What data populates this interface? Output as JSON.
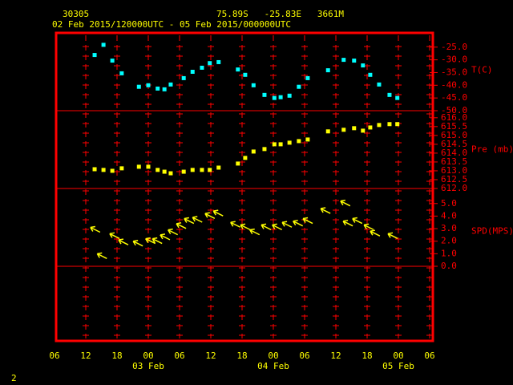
{
  "header": {
    "station": "30305",
    "location": "75.89S   -25.83E   3661M",
    "period": "02 Feb 2015/120000UTC - 05 Feb 2015/000000UTC"
  },
  "footer": "2",
  "x_axis": {
    "xlim": [
      6,
      78
    ],
    "xticks": [
      {
        "value": 6,
        "label": "06"
      },
      {
        "value": 12,
        "label": "12"
      },
      {
        "value": 18,
        "label": "18"
      },
      {
        "value": 24,
        "label": "00"
      },
      {
        "value": 30,
        "label": "06"
      },
      {
        "value": 36,
        "label": "12"
      },
      {
        "value": 42,
        "label": "18"
      },
      {
        "value": 48,
        "label": "00"
      },
      {
        "value": 54,
        "label": "06"
      },
      {
        "value": 60,
        "label": "12"
      },
      {
        "value": 66,
        "label": "18"
      },
      {
        "value": 72,
        "label": "00"
      },
      {
        "value": 78,
        "label": "06"
      }
    ],
    "date_labels": [
      {
        "value": 24,
        "label": "03 Feb"
      },
      {
        "value": 48,
        "label": "04 Feb"
      },
      {
        "value": 72,
        "label": "05 Feb"
      }
    ]
  },
  "chart_data": [
    {
      "type": "scatter",
      "ylabel": "T(C)",
      "color": "#00ffff",
      "ylim": [
        -50,
        -19.4
      ],
      "yticks": [
        {
          "value": -25,
          "label": "-25.0"
        },
        {
          "value": -30,
          "label": "-30.0"
        },
        {
          "value": -35,
          "label": "-35.0"
        },
        {
          "value": -40,
          "label": "-40.0"
        },
        {
          "value": -45,
          "label": "-45.0"
        },
        {
          "value": -50,
          "label": "-50.0"
        }
      ],
      "x": [
        13.7,
        15.4,
        17.1,
        18.9,
        22.2,
        24.0,
        25.8,
        27.1,
        28.3,
        30.8,
        32.5,
        34.3,
        35.8,
        37.5,
        41.2,
        42.6,
        44.2,
        46.3,
        48.2,
        49.4,
        51.1,
        52.9,
        54.6,
        58.5,
        61.5,
        63.5,
        65.2,
        66.6,
        68.3,
        70.3,
        71.8
      ],
      "values": [
        -28.1,
        -24.1,
        -30.3,
        -35.3,
        -40.6,
        -40.0,
        -41.3,
        -41.6,
        -39.7,
        -37.2,
        -34.7,
        -33.1,
        -31.3,
        -30.9,
        -33.8,
        -35.9,
        -40.0,
        -43.8,
        -45.0,
        -44.7,
        -44.1,
        -40.6,
        -37.2,
        -34.1,
        -30.0,
        -30.3,
        -32.2,
        -35.9,
        -39.7,
        -43.8,
        -45.0
      ]
    },
    {
      "type": "scatter",
      "ylabel": "Pre (mb)",
      "color": "#ffff00",
      "ylim": [
        612,
        616.4
      ],
      "yticks": [
        {
          "value": 616,
          "label": "616.0"
        },
        615.5,
        {
          "value": 615,
          "label": "615.0"
        },
        614.5,
        {
          "value": 614,
          "label": "614.0"
        },
        613.5,
        {
          "value": 613,
          "label": "613.0"
        },
        612.5,
        {
          "value": 612,
          "label": "612.0"
        }
      ],
      "x": [
        13.7,
        15.4,
        17.1,
        18.9,
        22.2,
        24.0,
        25.8,
        27.1,
        28.3,
        30.8,
        32.5,
        34.3,
        35.8,
        37.5,
        41.2,
        42.6,
        44.2,
        46.3,
        48.2,
        49.4,
        51.1,
        52.9,
        54.6,
        58.5,
        61.5,
        63.5,
        65.2,
        66.6,
        68.3,
        70.3,
        71.8
      ],
      "values": [
        613.09,
        613.05,
        613.0,
        613.14,
        613.23,
        613.23,
        613.05,
        612.95,
        612.86,
        612.95,
        613.05,
        613.05,
        613.05,
        613.18,
        613.41,
        613.73,
        614.09,
        614.23,
        614.5,
        614.5,
        614.59,
        614.68,
        614.77,
        615.23,
        615.32,
        615.41,
        615.27,
        615.45,
        615.59,
        615.64,
        615.64
      ]
    },
    {
      "type": "wind",
      "ylabel": "SPD(MPS)",
      "color": "#ffff00",
      "ylim": [
        0,
        6.2
      ],
      "yticks": [
        {
          "value": 5,
          "label": "5.0"
        },
        {
          "value": 4,
          "label": "4.0"
        },
        {
          "value": 3,
          "label": "3.0"
        },
        {
          "value": 2,
          "label": "2.0"
        },
        {
          "value": 1,
          "label": "1.0"
        },
        {
          "value": 0,
          "label": "0.0"
        }
      ],
      "x": [
        12.9,
        14.2,
        16.6,
        18.3,
        21.1,
        23.5,
        24.8,
        26.3,
        27.8,
        29.4,
        30.9,
        32.5,
        34.9,
        36.5,
        39.8,
        41.7,
        43.5,
        45.7,
        47.8,
        49.7,
        51.8,
        53.7,
        57.1,
        60.9,
        61.4,
        63.2,
        65.4,
        66.6,
        70.0
      ],
      "values": [
        3.1,
        1.0,
        2.6,
        2.1,
        2.0,
        2.2,
        2.2,
        2.5,
        2.9,
        3.4,
        3.8,
        3.9,
        4.2,
        4.4,
        3.5,
        3.3,
        2.9,
        3.3,
        3.3,
        3.5,
        3.6,
        3.8,
        4.6,
        5.2,
        3.6,
        3.8,
        3.3,
        2.8,
        2.6
      ]
    }
  ]
}
